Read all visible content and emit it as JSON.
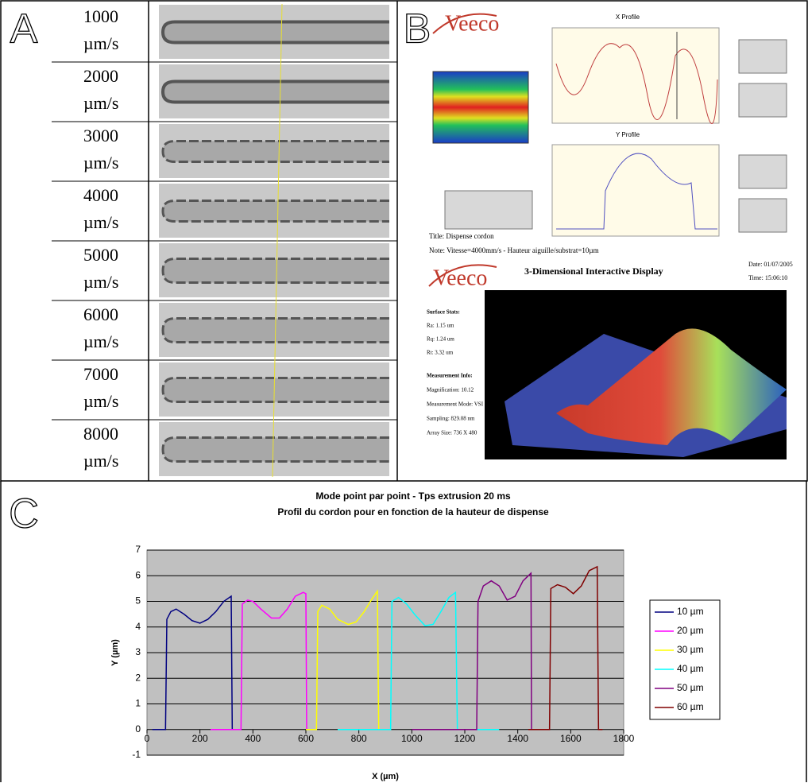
{
  "panel_labels": [
    "A",
    "B",
    "C"
  ],
  "panel_a": {
    "rows": [
      {
        "speed": "1000",
        "unit": "µm/s"
      },
      {
        "speed": "2000",
        "unit": "µm/s"
      },
      {
        "speed": "3000",
        "unit": "µm/s"
      },
      {
        "speed": "4000",
        "unit": "µm/s"
      },
      {
        "speed": "5000",
        "unit": "µm/s"
      },
      {
        "speed": "6000",
        "unit": "µm/s"
      },
      {
        "speed": "7000",
        "unit": "µm/s"
      },
      {
        "speed": "8000",
        "unit": "µm/s"
      }
    ]
  },
  "panel_b": {
    "logo": "Veeco",
    "x_profile": "X Profile",
    "y_profile": "Y Profile",
    "title": "Title: Dispense cordon",
    "note": "Note: Vitesse=4000mm/s - Hauteur aiguille/substrat=10µm",
    "display_title": "3-Dimensional Interactive Display",
    "date": "Date: 01/07/2005",
    "time": "Time: 15:06:10",
    "surface_stats": [
      "Surface Stats:",
      "Ra: 1.15 um",
      "Rq: 1.24 um",
      "Rt: 3.32 um"
    ],
    "measurement_info": [
      "Measurement Info:",
      "Magnification: 10.12",
      "Measurement Mode: VSI",
      "Sampling: 829.08 nm",
      "Array Size: 736 X 480"
    ]
  },
  "chart_data": {
    "type": "line",
    "title": [
      "Mode point par point - Tps extrusion 20 ms",
      "Profil du cordon pour en fonction de la hauteur de dispense"
    ],
    "x_label": "X (µm)",
    "y_label": "Y (µm)",
    "xlim": [
      0,
      1800
    ],
    "xticks": [
      0,
      200,
      400,
      600,
      800,
      1000,
      1200,
      1400,
      1600,
      1800
    ],
    "ylim": [
      -1,
      7
    ],
    "yticks": [
      -1,
      0,
      1,
      2,
      3,
      4,
      5,
      6,
      7
    ],
    "grid": true,
    "series": [
      {
        "name": "10 µm",
        "color": "#000080",
        "x": [
          20,
          65,
          70,
          75,
          90,
          110,
          140,
          170,
          200,
          230,
          260,
          290,
          318,
          322,
          330
        ],
        "values": [
          0,
          0,
          0,
          4.3,
          4.6,
          4.7,
          4.5,
          4.25,
          4.15,
          4.3,
          4.6,
          5.0,
          5.2,
          0,
          0
        ]
      },
      {
        "name": "20 µm",
        "color": "#ff00ff",
        "x": [
          240,
          355,
          360,
          380,
          400,
          430,
          470,
          500,
          530,
          560,
          590,
          600,
          603,
          640
        ],
        "values": [
          0,
          0,
          4.9,
          5.05,
          5.0,
          4.7,
          4.35,
          4.35,
          4.7,
          5.2,
          5.35,
          5.3,
          0,
          0
        ]
      },
      {
        "name": "30 µm",
        "color": "#ffff00",
        "x": [
          600,
          640,
          645,
          660,
          690,
          720,
          760,
          790,
          820,
          850,
          870,
          875,
          920
        ],
        "values": [
          0,
          0,
          4.6,
          4.85,
          4.7,
          4.3,
          4.1,
          4.2,
          4.6,
          5.1,
          5.4,
          0,
          0
        ]
      },
      {
        "name": "40 µm",
        "color": "#00ffff",
        "x": [
          720,
          920,
          925,
          950,
          980,
          1010,
          1050,
          1080,
          1110,
          1140,
          1165,
          1172,
          1330
        ],
        "values": [
          0,
          0,
          5.0,
          5.15,
          4.9,
          4.5,
          4.05,
          4.1,
          4.6,
          5.15,
          5.35,
          0,
          0
        ]
      },
      {
        "name": "50 µm",
        "color": "#800080",
        "x": [
          1000,
          1245,
          1250,
          1270,
          1300,
          1330,
          1360,
          1390,
          1420,
          1450,
          1452,
          1480
        ],
        "values": [
          0,
          0,
          5.0,
          5.6,
          5.8,
          5.6,
          5.05,
          5.2,
          5.8,
          6.1,
          0,
          0
        ]
      },
      {
        "name": "60 µm",
        "color": "#800000",
        "x": [
          1440,
          1520,
          1525,
          1550,
          1580,
          1610,
          1640,
          1670,
          1700,
          1705,
          1720
        ],
        "values": [
          0,
          0,
          5.5,
          5.65,
          5.55,
          5.3,
          5.6,
          6.2,
          6.35,
          0,
          0
        ]
      }
    ]
  }
}
